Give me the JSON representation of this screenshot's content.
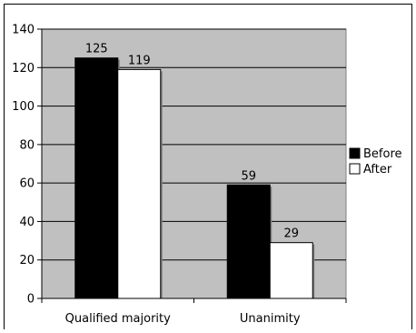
{
  "chart_data": {
    "type": "bar",
    "categories": [
      "Qualified majority",
      "Unanimity"
    ],
    "series": [
      {
        "name": "Before",
        "values": [
          125,
          59
        ],
        "color": "#000000"
      },
      {
        "name": "After",
        "values": [
          119,
          29
        ],
        "color": "#ffffff"
      }
    ],
    "ylim": [
      0,
      140
    ],
    "yticks": [
      0,
      20,
      40,
      60,
      80,
      100,
      120,
      140
    ],
    "grid": true,
    "plot_background": "#c0c0c0",
    "legend": "right"
  }
}
